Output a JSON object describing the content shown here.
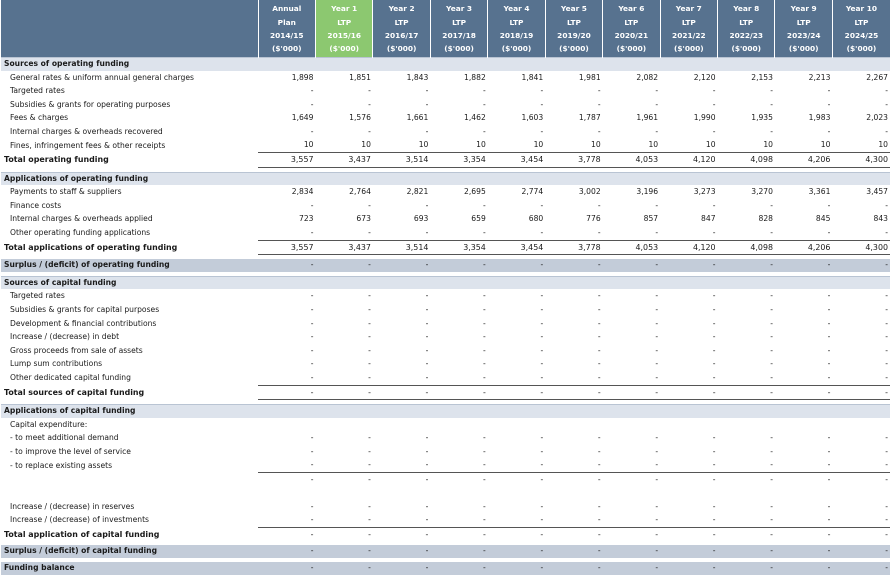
{
  "header": {
    "columns": [
      {
        "l1": "Annual",
        "l2": "Plan",
        "l3": "2014/15",
        "l4": "($'000)"
      },
      {
        "l1": "Year 1",
        "l2": "LTP",
        "l3": "2015/16",
        "l4": "($'000)"
      },
      {
        "l1": "Year 2",
        "l2": "LTP",
        "l3": "2016/17",
        "l4": "($'000)"
      },
      {
        "l1": "Year 3",
        "l2": "LTP",
        "l3": "2017/18",
        "l4": "($'000)"
      },
      {
        "l1": "Year 4",
        "l2": "LTP",
        "l3": "2018/19",
        "l4": "($'000)"
      },
      {
        "l1": "Year 5",
        "l2": "LTP",
        "l3": "2019/20",
        "l4": "($'000)"
      },
      {
        "l1": "Year 6",
        "l2": "LTP",
        "l3": "2020/21",
        "l4": "($'000)"
      },
      {
        "l1": "Year 7",
        "l2": "LTP",
        "l3": "2021/22",
        "l4": "($'000)"
      },
      {
        "l1": "Year 8",
        "l2": "LTP",
        "l3": "2022/23",
        "l4": "($'000)"
      },
      {
        "l1": "Year 9",
        "l2": "LTP",
        "l3": "2023/24",
        "l4": "($'000)"
      },
      {
        "l1": "Year 10",
        "l2": "LTP",
        "l3": "2024/25",
        "l4": "($'000)"
      }
    ]
  },
  "rows": [
    {
      "type": "sec",
      "label": "Sources of operating funding",
      "values": [
        "",
        "",
        "",
        "",
        "",
        "",
        "",
        "",
        "",
        "",
        ""
      ]
    },
    {
      "type": "item",
      "label": "General rates & uniform annual general charges",
      "values": [
        "1,898",
        "1,851",
        "1,843",
        "1,882",
        "1,841",
        "1,981",
        "2,082",
        "2,120",
        "2,153",
        "2,213",
        "2,267"
      ]
    },
    {
      "type": "item",
      "label": "Targeted rates",
      "values": [
        "-",
        "-",
        "-",
        "-",
        "-",
        "-",
        "-",
        "-",
        "-",
        "-",
        "-"
      ]
    },
    {
      "type": "item",
      "label": "Subsidies & grants for operating purposes",
      "values": [
        "-",
        "-",
        "-",
        "-",
        "-",
        "-",
        "-",
        "-",
        "-",
        "-",
        "-"
      ]
    },
    {
      "type": "item",
      "label": "Fees & charges",
      "values": [
        "1,649",
        "1,576",
        "1,661",
        "1,462",
        "1,603",
        "1,787",
        "1,961",
        "1,990",
        "1,935",
        "1,983",
        "2,023"
      ]
    },
    {
      "type": "item",
      "label": "Internal charges & overheads recovered",
      "values": [
        "-",
        "-",
        "-",
        "-",
        "-",
        "-",
        "-",
        "-",
        "-",
        "-",
        "-"
      ]
    },
    {
      "type": "item",
      "label": "Fines, infringement fees & other receipts",
      "values": [
        "10",
        "10",
        "10",
        "10",
        "10",
        "10",
        "10",
        "10",
        "10",
        "10",
        "10"
      ]
    },
    {
      "type": "tot",
      "label": "Total operating funding",
      "values": [
        "3,557",
        "3,437",
        "3,514",
        "3,354",
        "3,454",
        "3,778",
        "4,053",
        "4,120",
        "4,098",
        "4,206",
        "4,300"
      ]
    },
    {
      "type": "sp",
      "label": "",
      "values": [
        "",
        "",
        "",
        "",
        "",
        "",
        "",
        "",
        "",
        "",
        ""
      ]
    },
    {
      "type": "sec",
      "label": "Applications of operating funding",
      "values": [
        "",
        "",
        "",
        "",
        "",
        "",
        "",
        "",
        "",
        "",
        ""
      ]
    },
    {
      "type": "item",
      "label": "Payments to staff & suppliers",
      "values": [
        "2,834",
        "2,764",
        "2,821",
        "2,695",
        "2,774",
        "3,002",
        "3,196",
        "3,273",
        "3,270",
        "3,361",
        "3,457"
      ]
    },
    {
      "type": "item",
      "label": "Finance costs",
      "values": [
        "-",
        "-",
        "-",
        "-",
        "-",
        "-",
        "-",
        "-",
        "-",
        "-",
        "-"
      ]
    },
    {
      "type": "item",
      "label": "Internal charges & overheads applied",
      "values": [
        "723",
        "673",
        "693",
        "659",
        "680",
        "776",
        "857",
        "847",
        "828",
        "845",
        "843"
      ]
    },
    {
      "type": "item",
      "label": "Other operating funding applications",
      "values": [
        "-",
        "-",
        "-",
        "-",
        "-",
        "-",
        "-",
        "-",
        "-",
        "-",
        "-"
      ]
    },
    {
      "type": "tot",
      "label": "Total applications of operating funding",
      "values": [
        "3,557",
        "3,437",
        "3,514",
        "3,354",
        "3,454",
        "3,778",
        "4,053",
        "4,120",
        "4,098",
        "4,206",
        "4,300"
      ]
    },
    {
      "type": "sp",
      "label": "",
      "values": [
        "",
        "",
        "",
        "",
        "",
        "",
        "",
        "",
        "",
        "",
        ""
      ]
    },
    {
      "type": "surplus",
      "label": "Surplus / (deficit) of operating funding",
      "values": [
        "-",
        "-",
        "-",
        "-",
        "-",
        "-",
        "-",
        "-",
        "-",
        "-",
        "-"
      ]
    },
    {
      "type": "sp",
      "label": "",
      "values": [
        "",
        "",
        "",
        "",
        "",
        "",
        "",
        "",
        "",
        "",
        ""
      ]
    },
    {
      "type": "sec",
      "label": "Sources of capital funding",
      "values": [
        "",
        "",
        "",
        "",
        "",
        "",
        "",
        "",
        "",
        "",
        ""
      ]
    },
    {
      "type": "item",
      "label": "Targeted rates",
      "values": [
        "-",
        "-",
        "-",
        "-",
        "-",
        "-",
        "-",
        "-",
        "-",
        "-",
        "-"
      ]
    },
    {
      "type": "item",
      "label": "Subsidies & grants for capital purposes",
      "values": [
        "-",
        "-",
        "-",
        "-",
        "-",
        "-",
        "-",
        "-",
        "-",
        "-",
        "-"
      ]
    },
    {
      "type": "item",
      "label": "Development & financial contributions",
      "values": [
        "-",
        "-",
        "-",
        "-",
        "-",
        "-",
        "-",
        "-",
        "-",
        "-",
        "-"
      ]
    },
    {
      "type": "item",
      "label": "Increase / (decrease) in debt",
      "values": [
        "-",
        "-",
        "-",
        "-",
        "-",
        "-",
        "-",
        "-",
        "-",
        "-",
        "-"
      ]
    },
    {
      "type": "item",
      "label": "Gross proceeds from sale of assets",
      "values": [
        "-",
        "-",
        "-",
        "-",
        "-",
        "-",
        "-",
        "-",
        "-",
        "-",
        "-"
      ]
    },
    {
      "type": "item",
      "label": "Lump sum contributions",
      "values": [
        "-",
        "-",
        "-",
        "-",
        "-",
        "-",
        "-",
        "-",
        "-",
        "-",
        "-"
      ]
    },
    {
      "type": "item",
      "label": "Other dedicated capital funding",
      "values": [
        "-",
        "-",
        "-",
        "-",
        "-",
        "-",
        "-",
        "-",
        "-",
        "-",
        "-"
      ]
    },
    {
      "type": "tot",
      "label": "Total sources of capital funding",
      "values": [
        "-",
        "-",
        "-",
        "-",
        "-",
        "-",
        "-",
        "-",
        "-",
        "-",
        "-"
      ]
    },
    {
      "type": "sp",
      "label": "",
      "values": [
        "",
        "",
        "",
        "",
        "",
        "",
        "",
        "",
        "",
        "",
        ""
      ]
    },
    {
      "type": "sec",
      "label": "Applications of capital funding",
      "values": [
        "",
        "",
        "",
        "",
        "",
        "",
        "",
        "",
        "",
        "",
        ""
      ]
    },
    {
      "type": "item",
      "label": "Capital expenditure:",
      "values": [
        "",
        "",
        "",
        "",
        "",
        "",
        "",
        "",
        "",
        "",
        ""
      ]
    },
    {
      "type": "item",
      "label": "- to meet additional demand",
      "values": [
        "-",
        "-",
        "-",
        "-",
        "-",
        "-",
        "-",
        "-",
        "-",
        "-",
        "-"
      ]
    },
    {
      "type": "item",
      "label": "- to improve the level of service",
      "values": [
        "-",
        "-",
        "-",
        "-",
        "-",
        "-",
        "-",
        "-",
        "-",
        "-",
        "-"
      ]
    },
    {
      "type": "item",
      "label": "- to replace existing assets",
      "values": [
        "-",
        "-",
        "-",
        "-",
        "-",
        "-",
        "-",
        "-",
        "-",
        "-",
        "-"
      ]
    },
    {
      "type": "subtot",
      "label": "",
      "values": [
        "-",
        "-",
        "-",
        "-",
        "-",
        "-",
        "-",
        "-",
        "-",
        "-",
        "-"
      ]
    },
    {
      "type": "blank",
      "label": "",
      "values": [
        "",
        "",
        "",
        "",
        "",
        "",
        "",
        "",
        "",
        "",
        ""
      ]
    },
    {
      "type": "item",
      "label": "Increase / (decrease) in reserves",
      "values": [
        "-",
        "-",
        "-",
        "-",
        "-",
        "-",
        "-",
        "-",
        "-",
        "-",
        "-"
      ]
    },
    {
      "type": "item",
      "label": "Increase / (decrease) of investments",
      "values": [
        "-",
        "-",
        "-",
        "-",
        "-",
        "-",
        "-",
        "-",
        "-",
        "-",
        "-"
      ]
    },
    {
      "type": "tot",
      "label": "Total application of capital funding",
      "values": [
        "-",
        "-",
        "-",
        "-",
        "-",
        "-",
        "-",
        "-",
        "-",
        "-",
        "-"
      ]
    },
    {
      "type": "sp",
      "label": "",
      "values": [
        "",
        "",
        "",
        "",
        "",
        "",
        "",
        "",
        "",
        "",
        ""
      ]
    },
    {
      "type": "surplus",
      "label": "Surplus / (deficit) of capital funding",
      "values": [
        "-",
        "-",
        "-",
        "-",
        "-",
        "-",
        "-",
        "-",
        "-",
        "-",
        "-"
      ]
    },
    {
      "type": "sp",
      "label": "",
      "values": [
        "",
        "",
        "",
        "",
        "",
        "",
        "",
        "",
        "",
        "",
        ""
      ]
    },
    {
      "type": "surplus",
      "label": "Funding balance",
      "values": [
        "-",
        "-",
        "-",
        "-",
        "-",
        "-",
        "-",
        "-",
        "-",
        "-",
        "-"
      ]
    }
  ]
}
